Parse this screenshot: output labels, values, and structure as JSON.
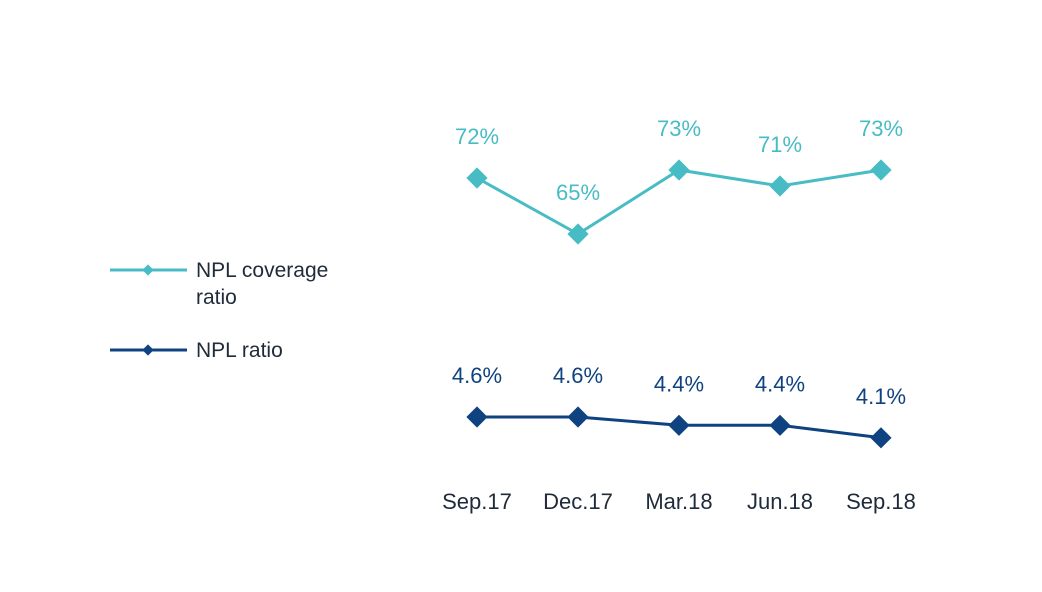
{
  "chart_data": {
    "type": "line",
    "categories": [
      "Sep.17",
      "Dec.17",
      "Mar.18",
      "Jun.18",
      "Sep.18"
    ],
    "series": [
      {
        "name": "NPL coverage ratio",
        "legend_lines": [
          "NPL coverage",
          "ratio"
        ],
        "values": [
          72,
          65,
          73,
          71,
          73
        ],
        "labels": [
          "72%",
          "65%",
          "73%",
          "71%",
          "73%"
        ],
        "color": "#48bcc4"
      },
      {
        "name": "NPL ratio",
        "legend_lines": [
          "NPL ratio"
        ],
        "values": [
          4.6,
          4.6,
          4.4,
          4.4,
          4.1
        ],
        "labels": [
          "4.6%",
          "4.6%",
          "4.4%",
          "4.4%",
          "4.1%"
        ],
        "color": "#0f4280"
      }
    ],
    "legend_position": "left",
    "grid": false
  }
}
